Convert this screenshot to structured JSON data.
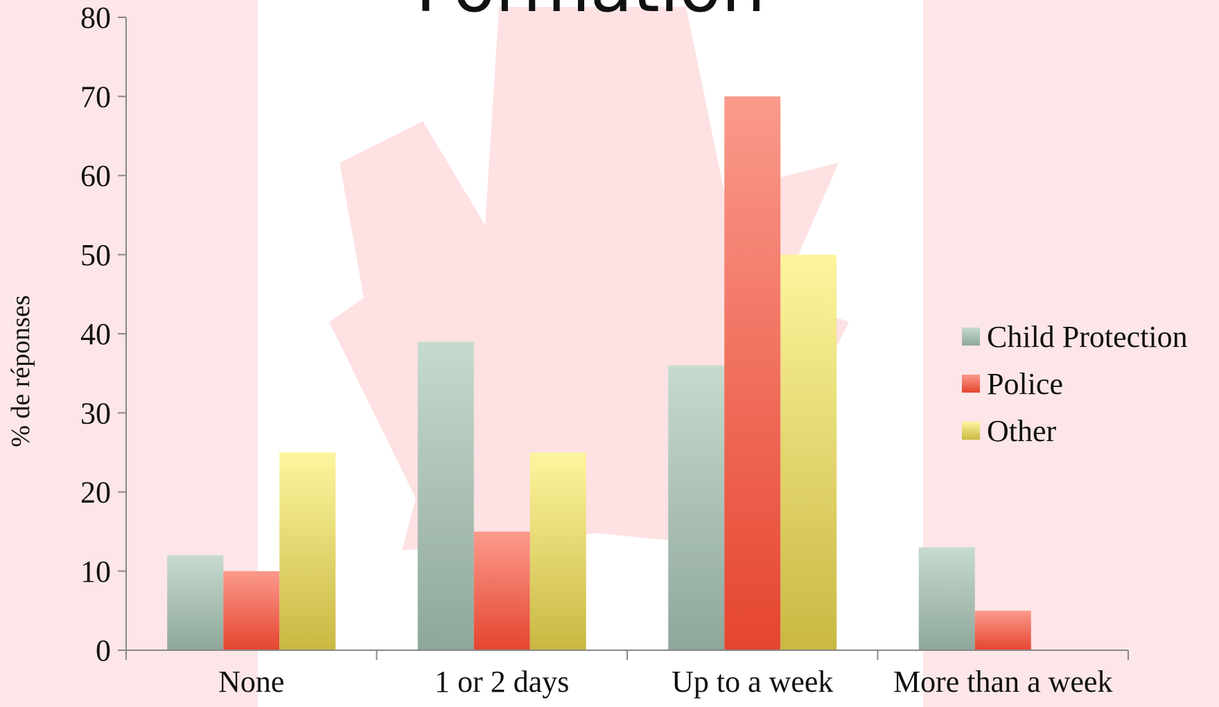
{
  "slide": {
    "title": "Formation",
    "background_colors": {
      "band": "#fde6e8",
      "leaf": "#fde1e3"
    }
  },
  "chart_data": {
    "type": "bar",
    "categories": [
      "None",
      "1 or 2 days",
      "Up to a week",
      "More than a week"
    ],
    "series": [
      {
        "name": "Child Protection",
        "values": [
          12,
          39,
          36,
          13
        ],
        "color_top": "#c6dace",
        "color_bottom": "#8fa79b"
      },
      {
        "name": "Police",
        "values": [
          10,
          15,
          70,
          5
        ],
        "color_top": "#fb9a8c",
        "color_bottom": "#e5452f"
      },
      {
        "name": "Other",
        "values": [
          25,
          25,
          50,
          null
        ],
        "color_top": "#fdf59e",
        "color_bottom": "#c9b842"
      }
    ],
    "title": "",
    "xlabel": "",
    "ylabel": "% de réponses",
    "ylim": [
      0,
      80
    ],
    "yticks": [
      0,
      10,
      20,
      30,
      40,
      50,
      60,
      70,
      80
    ],
    "grid": false,
    "legend_position": "right"
  }
}
